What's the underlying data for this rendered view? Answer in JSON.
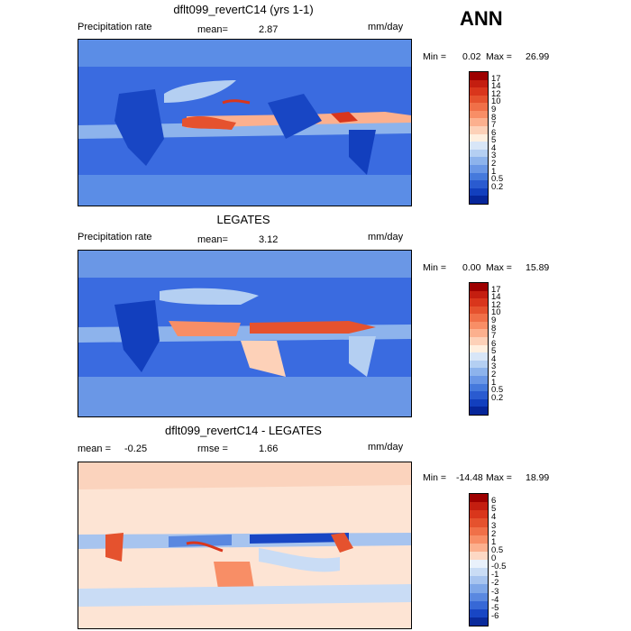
{
  "season": "ANN",
  "panels": [
    {
      "title": "dflt099_revertC14 (yrs 1-1)",
      "left_label": "Precipitation rate",
      "stat1_label": "mean=",
      "stat1_value": "2.87",
      "units": "mm/day",
      "min_label": "Min =",
      "min_value": "0.02",
      "max_label": "Max =",
      "max_value": "26.99",
      "colorbar_labels": [
        "17",
        "14",
        "12",
        "10",
        "9",
        "8",
        "7",
        "6",
        "5",
        "4",
        "3",
        "2",
        "1",
        "0.5",
        "0.2"
      ],
      "colorbar_colors": [
        "#9e0000",
        "#c41e10",
        "#d9361c",
        "#e5522e",
        "#f07048",
        "#f88e66",
        "#fcb08e",
        "#fdd1b8",
        "#ffefdf",
        "#d8e6f7",
        "#b4cff2",
        "#8db3ec",
        "#6a97e6",
        "#4579dc",
        "#2a5bd0",
        "#123fbe",
        "#06269a"
      ]
    },
    {
      "title": "LEGATES",
      "left_label": "Precipitation rate",
      "stat1_label": "mean=",
      "stat1_value": "3.12",
      "units": "mm/day",
      "min_label": "Min =",
      "min_value": "0.00",
      "max_label": "Max =",
      "max_value": "15.89",
      "colorbar_labels": [
        "17",
        "14",
        "12",
        "10",
        "9",
        "8",
        "7",
        "6",
        "5",
        "4",
        "3",
        "2",
        "1",
        "0.5",
        "0.2"
      ],
      "colorbar_colors": [
        "#9e0000",
        "#c41e10",
        "#d9361c",
        "#e5522e",
        "#f07048",
        "#f88e66",
        "#fcb08e",
        "#fdd1b8",
        "#ffefdf",
        "#d8e6f7",
        "#b4cff2",
        "#8db3ec",
        "#6a97e6",
        "#4579dc",
        "#2a5bd0",
        "#123fbe",
        "#06269a"
      ]
    },
    {
      "title": "dflt099_revertC14 - LEGATES",
      "left_label": "mean =",
      "left_value": "-0.25",
      "stat1_label": "rmse =",
      "stat1_value": "1.66",
      "units": "mm/day",
      "min_label": "Min =",
      "min_value": "-14.48",
      "max_label": "Max =",
      "max_value": "18.99",
      "colorbar_labels": [
        "6",
        "5",
        "4",
        "3",
        "2",
        "1",
        "0.5",
        "0",
        "-0.5",
        "-1",
        "-2",
        "-3",
        "-4",
        "-5",
        "-6"
      ],
      "colorbar_colors": [
        "#9e0000",
        "#c41e10",
        "#d9361c",
        "#e5522e",
        "#f07048",
        "#f88e66",
        "#fcb08e",
        "#fdd8c4",
        "#e9f1fb",
        "#c9dcf5",
        "#a7c4ef",
        "#7fa7e8",
        "#5a88e0",
        "#3768d6",
        "#1846c4",
        "#0a2b9c"
      ]
    }
  ]
}
